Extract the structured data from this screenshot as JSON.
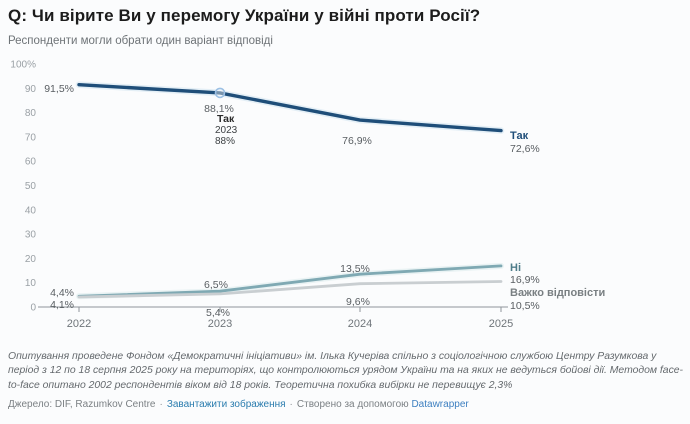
{
  "header": {
    "title": "Q: Чи вірите Ви у перемогу України у війні проти Росії?",
    "subtitle": "Респонденти могли обрати один варіант відповіді"
  },
  "chart_data": {
    "type": "line",
    "title": "Q: Чи вірите Ви у перемогу України у війні проти Росії?",
    "subtitle": "Респонденти могли обрати один варіант відповіді",
    "x": [
      "2022",
      "2023",
      "2024",
      "2025"
    ],
    "series": [
      {
        "name": "Так",
        "color": "#1f4e79",
        "label_color": "#1f4e79",
        "values": [
          91.5,
          88.1,
          76.9,
          72.6
        ],
        "point_labels": [
          "91,5%",
          "88,1%",
          "76,9%",
          "72,6%"
        ]
      },
      {
        "name": "Ні",
        "color": "#7fa9b3",
        "label_color": "#4f7d8a",
        "values": [
          4.4,
          6.5,
          13.5,
          16.9
        ],
        "point_labels": [
          "4,4%",
          "6,5%",
          "13,5%",
          "16,9%"
        ]
      },
      {
        "name": "Важко відповісти",
        "color": "#c9ced1",
        "label_color": "#797f82",
        "values": [
          4.1,
          5.4,
          9.6,
          10.5
        ],
        "point_labels": [
          "4,1%",
          "5,4%",
          "9,6%",
          "10,5%"
        ]
      }
    ],
    "ylim": [
      0,
      100
    ],
    "yticks": [
      "100%",
      "90",
      "80",
      "70",
      "60",
      "50",
      "40",
      "30",
      "20",
      "10",
      "0"
    ],
    "grid": false,
    "legend_position": "end-of-line-labels",
    "tooltip": {
      "series": "Так",
      "x": "2023",
      "value": "88%"
    }
  },
  "notes": "Опитування проведене Фондом «Демократичні ініціативи» ім. Ілька Кучеріва спільно з соціологічною службою Центру Разумкова у період з 12 по 18 серпня 2025 року на територіях, що контролюються урядом України та на яких не ведуться бойові дії. Методом face-to-face опитано 2002 респондентів віком від 18 років. Теоретична похибка вибірки не перевищує 2,3%",
  "source": {
    "prefix": "Джерело: DIF, Razumkov Centre",
    "separator": "·",
    "download_link": "Завантажити зображення",
    "created_with": "Створено за допомогою",
    "tool_link": "Datawrapper"
  }
}
